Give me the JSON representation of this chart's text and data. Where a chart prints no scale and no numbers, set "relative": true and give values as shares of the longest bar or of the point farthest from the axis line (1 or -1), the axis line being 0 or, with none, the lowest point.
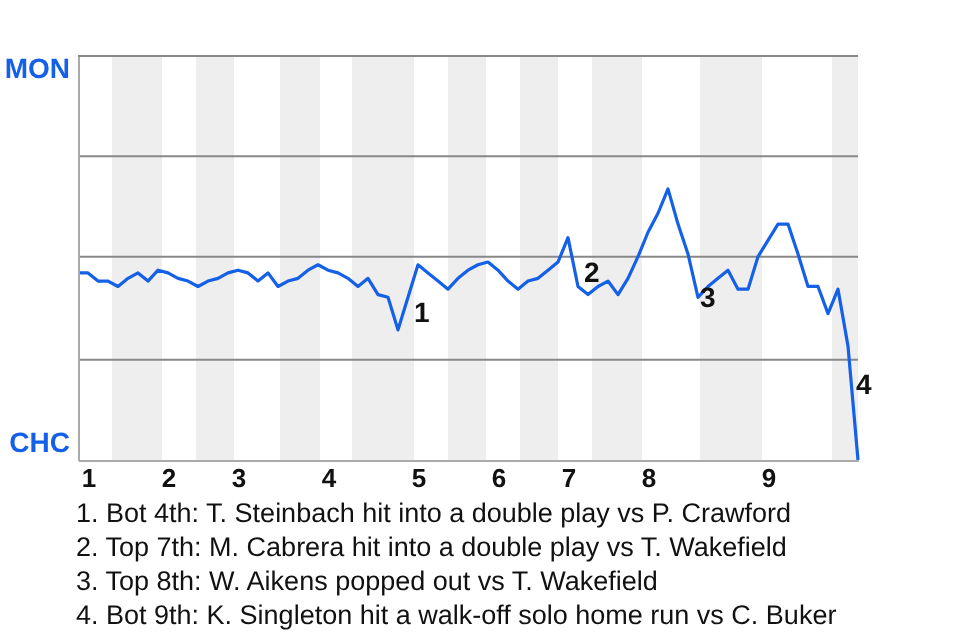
{
  "chart_data": {
    "type": "line",
    "relative": true,
    "categories": [
      null,
      "1",
      null,
      null,
      null,
      null,
      null,
      null,
      null,
      "2",
      null,
      null,
      null,
      null,
      null,
      null,
      "3",
      null,
      null,
      null,
      null,
      null,
      null,
      null,
      null,
      "4",
      null,
      null,
      null,
      null,
      null,
      null,
      null,
      null,
      "5",
      null,
      null,
      null,
      null,
      null,
      null,
      null,
      "6",
      null,
      null,
      null,
      null,
      null,
      null,
      "7",
      null,
      null,
      null,
      null,
      null,
      null,
      null,
      "8",
      null,
      null,
      null,
      null,
      null,
      null,
      null,
      null,
      null,
      null,
      null,
      "9",
      null,
      null,
      null,
      null,
      null,
      null,
      null,
      null,
      null
    ],
    "ref_lines": [
      {
        "axis": "y",
        "value": 0.37,
        "color": "#888888"
      },
      {
        "axis": "y",
        "value": 0.75,
        "color": "#888888"
      },
      {
        "axis": "y",
        "value": 1.12,
        "color": "#888888"
      },
      {
        "axis": "y",
        "value": 1.49,
        "color": "#888888"
      }
    ],
    "series": [
      {
        "color": "#1560e8",
        "values": [
          0.69,
          0.69,
          0.66,
          0.66,
          0.64,
          0.67,
          0.69,
          0.66,
          0.7,
          0.69,
          0.67,
          0.66,
          0.64,
          0.66,
          0.67,
          0.69,
          0.7,
          0.69,
          0.66,
          0.69,
          0.64,
          0.66,
          0.67,
          0.7,
          0.72,
          0.7,
          0.69,
          0.67,
          0.64,
          0.67,
          0.61,
          0.6,
          0.48,
          0.6,
          0.72,
          0.69,
          0.66,
          0.63,
          0.67,
          0.7,
          0.72,
          0.73,
          0.7,
          0.66,
          0.63,
          0.66,
          0.67,
          0.7,
          0.73,
          0.82,
          0.64,
          0.61,
          0.64,
          0.66,
          0.61,
          0.67,
          0.75,
          0.84,
          0.91,
          1,
          0.87,
          0.76,
          0.6,
          0.64,
          0.67,
          0.7,
          0.63,
          0.63,
          0.75,
          0.81,
          0.87,
          0.87,
          0.76,
          0.64,
          0.64,
          0.54,
          0.63,
          0.42,
          0
        ]
      }
    ],
    "annotations": [
      "MON",
      "CHC",
      "1",
      "2",
      "3",
      "4",
      "1. Bot 4th: T. Steinbach hit into a double play vs P. Crawford",
      "2. Top 7th: M. Cabrera hit into a double play vs T. Wakefield",
      "3. Top 8th: W. Aikens popped out vs T. Wakefield",
      "4. Bot 9th: K. Singleton hit a walk-off solo home run vs C. Buker"
    ]
  }
}
